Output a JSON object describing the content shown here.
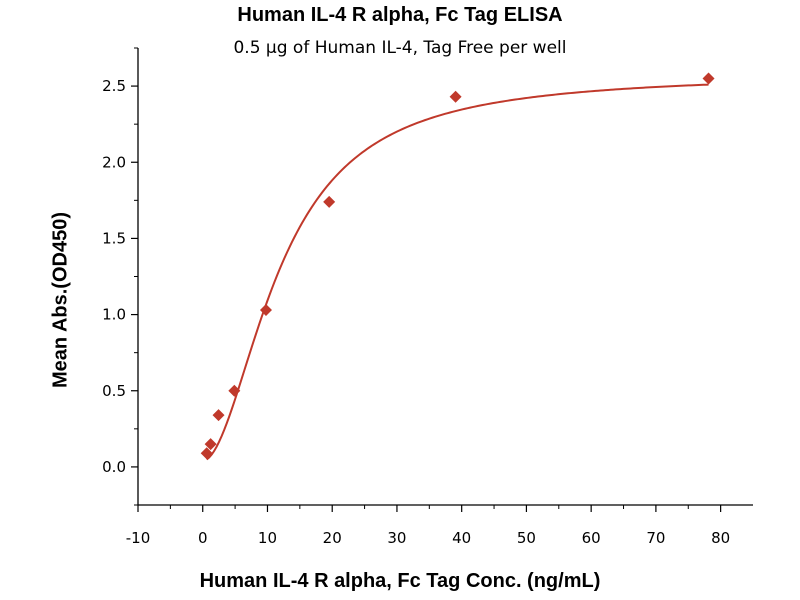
{
  "chart_data": {
    "type": "scatter",
    "title": "Human IL-4 R alpha, Fc Tag ELISA",
    "subtitle": "0.5 μg of Human IL-4, Tag Free per well",
    "xlabel": "Human IL-4 R alpha, Fc Tag Conc. (ng/mL)",
    "ylabel": "Mean Abs.(OD450)",
    "xlim": [
      -10,
      85
    ],
    "ylim": [
      -0.25,
      2.75
    ],
    "x_ticks": [
      -10,
      0,
      10,
      20,
      30,
      40,
      50,
      60,
      70,
      80
    ],
    "y_ticks": [
      0.0,
      0.5,
      1.0,
      1.5,
      2.0,
      2.5
    ],
    "y_tick_labels": [
      "0.0",
      "0.5",
      "1.0",
      "1.5",
      "2.0",
      "2.5"
    ],
    "grid": false,
    "legend": "none",
    "marker_color": "#c0392b",
    "line_color": "#c0392b",
    "series": [
      {
        "marker": "diamond",
        "x": [
          0.61,
          1.22,
          2.44,
          4.88,
          9.77,
          19.53,
          39.06,
          78.13
        ],
        "y": [
          0.09,
          0.15,
          0.34,
          0.5,
          1.03,
          1.74,
          2.43,
          2.55
        ]
      }
    ],
    "fit_curve": {
      "model": "4PL",
      "bottom": 0.04,
      "top": 2.58,
      "ec50": 12.0,
      "hill": 1.9
    }
  }
}
